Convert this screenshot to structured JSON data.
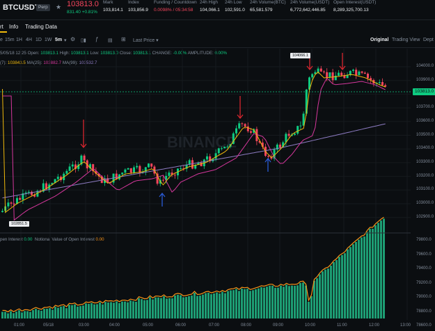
{
  "header": {
    "symbol": "BTCUSDT",
    "badge": "Perp",
    "last_price": "103813.0",
    "change_abs": "831.40",
    "change_pct": "+0.81%",
    "stats": [
      {
        "label": "Mark",
        "value": "103,814.1"
      },
      {
        "label": "Index",
        "value": "103,856.9"
      },
      {
        "label": "Funding / Countdown",
        "value": "0.0098% / 05:34:58"
      },
      {
        "label": "24h High",
        "value": "104,066.1"
      },
      {
        "label": "24h Low",
        "value": "102,591.0"
      },
      {
        "label": "24h Volume(BTC)",
        "value": "65,581.579"
      },
      {
        "label": "24h Volume(USDT)",
        "value": "6,772,642,446.85"
      },
      {
        "label": "Open Interest(USDT)",
        "value": "8,289,325,700.13"
      }
    ]
  },
  "tabs": [
    "rt",
    "Info",
    "Trading Data"
  ],
  "toolbar": {
    "intervals": [
      "e",
      "15m",
      "1H",
      "4H",
      "1D",
      "1W",
      "5m"
    ],
    "active_interval": "5m",
    "price_selector": "Last Price",
    "views": [
      "Original",
      "Trading View",
      "Dept"
    ]
  },
  "legend": {
    "ohlc_line": {
      "date": "5/05/18 12:25",
      "open_label": "Open:",
      "open": "103813.1",
      "high_label": "High:",
      "high": "103813.1",
      "low_label": "Low:",
      "low": "103813.0",
      "close_label": "Close:",
      "close": "103813.1",
      "change_label": "CHANGE:",
      "change": "-0.00%",
      "amp_label": "AMPLITUDE:",
      "amp": "0.00%"
    },
    "ma_line": {
      "ma7_label": "(7):",
      "ma7": "103843.5",
      "ma25_label": "MA(25):",
      "ma25": "103882.7",
      "ma99_label": "MA(99):",
      "ma99": "103532.7"
    },
    "oi_line": {
      "oi_label": "pen Interest",
      "oi": "0.00",
      "nv_label": "Notional Value of Open Interest",
      "nv": "0.00"
    }
  },
  "price_axis": [
    "104000.0",
    "103900.0",
    "103800.0",
    "103700.0",
    "103600.0",
    "103500.0",
    "103400.0",
    "103300.0",
    "103200.0",
    "103100.0",
    "103000.0",
    "102900.0"
  ],
  "price_tag": "103813.0",
  "high_marker": "104066.1",
  "low_marker": "102851.5",
  "oi_axis": [
    "79800.0",
    "79600.0",
    "79400.0",
    "79200.0",
    "79000.0",
    "78800.0",
    "78600.0"
  ],
  "time_axis": [
    "01:00",
    "05/18",
    "03:00",
    "04:00",
    "05:00",
    "06:00",
    "07:00",
    "08:00",
    "09:00",
    "10:00",
    "11:00",
    "12:00",
    "13:00"
  ],
  "watermark": "BINANCE",
  "colors": {
    "up": "#0ecb81",
    "down": "#f6465d",
    "ma7": "#f0b90b",
    "ma25": "#d6379d",
    "ma99": "#8e7cc3",
    "oi_line": "#f7931a",
    "bg": "#0b0e11"
  }
}
